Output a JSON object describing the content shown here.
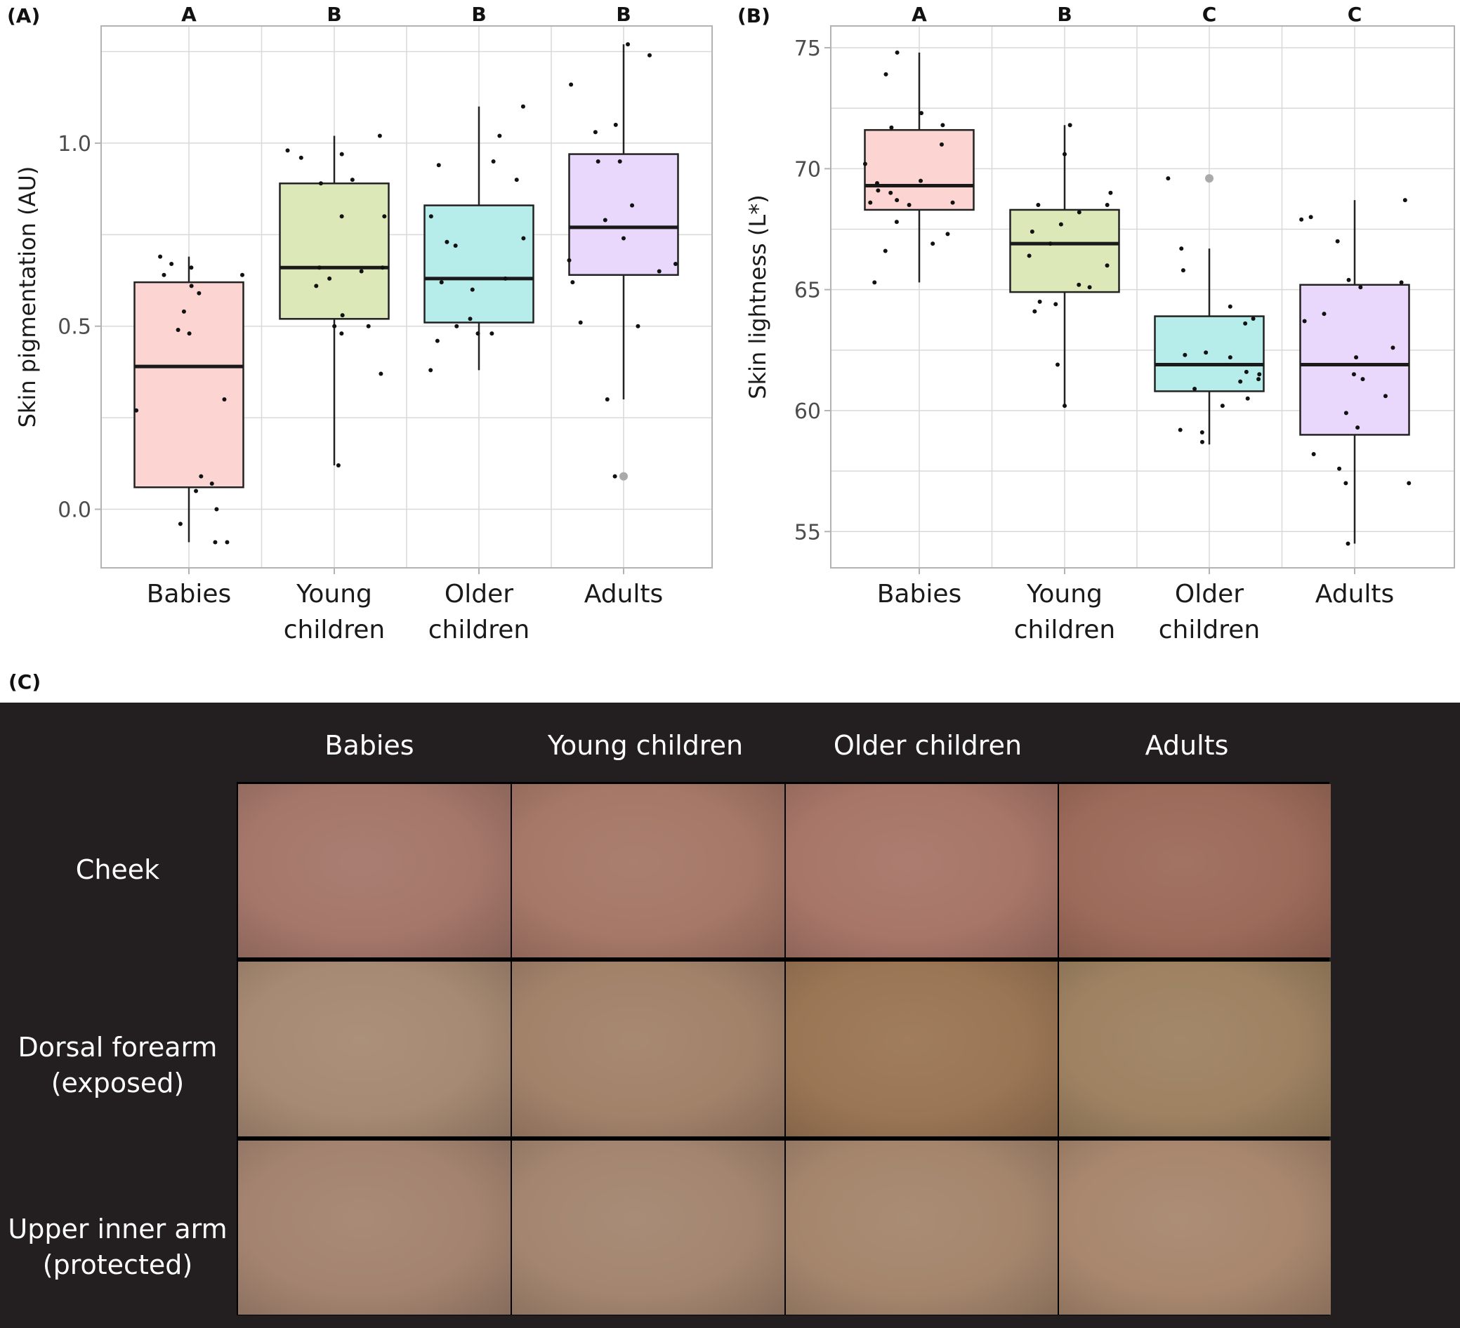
{
  "chart_data": [
    {
      "type": "box",
      "panel": "(A)",
      "ylabel": "Skin pigmentation (AU)",
      "ylim": [
        -0.16,
        1.32
      ],
      "yticks": [
        0.0,
        0.5,
        1.0
      ],
      "ytick_labels": [
        "0.0",
        "0.5",
        "1.0"
      ],
      "categories": [
        [
          "Babies"
        ],
        [
          "Young",
          "children"
        ],
        [
          "Older",
          "children"
        ],
        [
          "Adults"
        ]
      ],
      "letters": [
        "A",
        "B",
        "B",
        "B"
      ],
      "colors": [
        "#fcd5d3",
        "#dce8b8",
        "#b6ecea",
        "#ead8fc"
      ],
      "boxes": [
        {
          "q1": 0.06,
          "median": 0.39,
          "q3": 0.62,
          "whisker_low": -0.09,
          "whisker_high": 0.69,
          "outliers": []
        },
        {
          "q1": 0.52,
          "median": 0.66,
          "q3": 0.89,
          "whisker_low": 0.12,
          "whisker_high": 1.02,
          "outliers": []
        },
        {
          "q1": 0.51,
          "median": 0.63,
          "q3": 0.83,
          "whisker_low": 0.38,
          "whisker_high": 1.1,
          "outliers": []
        },
        {
          "q1": 0.64,
          "median": 0.77,
          "q3": 0.97,
          "whisker_low": 0.3,
          "whisker_high": 1.27,
          "outliers": [
            0.09
          ]
        }
      ],
      "points": [
        [
          -0.09,
          0.05,
          0.54,
          0.64,
          0.3,
          0.0,
          0.48,
          0.61,
          0.66,
          0.27,
          0.59,
          0.09,
          0.49,
          -0.09,
          0.67,
          -0.04,
          0.69,
          0.64,
          0.07
        ],
        [
          0.98,
          0.66,
          0.61,
          0.66,
          0.12,
          0.97,
          0.48,
          0.53,
          0.8,
          0.89,
          1.02,
          0.5,
          0.96,
          0.65,
          0.9,
          0.8,
          0.63,
          0.37,
          0.5
        ],
        [
          0.52,
          0.5,
          1.1,
          0.48,
          0.74,
          1.02,
          0.46,
          0.9,
          0.38,
          0.72,
          0.63,
          0.95,
          0.94,
          0.8,
          0.73,
          0.48,
          0.6,
          0.62
        ],
        [
          0.65,
          1.27,
          0.62,
          0.51,
          0.95,
          0.67,
          1.05,
          0.68,
          0.74,
          0.83,
          1.24,
          0.5,
          1.16,
          0.09,
          0.3,
          1.03,
          0.95,
          0.79
        ]
      ]
    },
    {
      "type": "box",
      "panel": "(B)",
      "ylabel": "Skin lightness (L*)",
      "ylim": [
        53.5,
        75.9
      ],
      "yticks": [
        55,
        60,
        65,
        70,
        75
      ],
      "ytick_labels": [
        "55",
        "60",
        "65",
        "70",
        "75"
      ],
      "categories": [
        [
          "Babies"
        ],
        [
          "Young",
          "children"
        ],
        [
          "Older",
          "children"
        ],
        [
          "Adults"
        ]
      ],
      "letters": [
        "A",
        "B",
        "C",
        "C"
      ],
      "colors": [
        "#fcd5d3",
        "#dce8b8",
        "#b6ecea",
        "#ead8fc"
      ],
      "boxes": [
        {
          "q1": 68.3,
          "median": 69.3,
          "q3": 71.6,
          "whisker_low": 65.3,
          "whisker_high": 74.8,
          "outliers": []
        },
        {
          "q1": 64.9,
          "median": 66.9,
          "q3": 68.3,
          "whisker_low": 60.2,
          "whisker_high": 71.8,
          "outliers": []
        },
        {
          "q1": 60.8,
          "median": 61.9,
          "q3": 63.9,
          "whisker_low": 58.6,
          "whisker_high": 66.7,
          "outliers": [
            69.6
          ]
        },
        {
          "q1": 59.0,
          "median": 61.9,
          "q3": 65.2,
          "whisker_low": 54.5,
          "whisker_high": 68.7,
          "outliers": []
        }
      ],
      "points": [
        [
          71.0,
          68.5,
          69.1,
          68.6,
          65.3,
          71.7,
          68.6,
          74.8,
          66.6,
          71.8,
          68.7,
          72.3,
          73.9,
          69.0,
          66.9,
          69.4,
          70.2,
          69.5,
          67.3,
          67.8
        ],
        [
          67.7,
          65.2,
          68.5,
          66.0,
          71.8,
          70.6,
          64.5,
          67.4,
          68.2,
          60.2,
          69.0,
          66.9,
          65.1,
          64.4,
          68.5,
          61.9,
          64.1,
          66.4
        ],
        [
          65.8,
          63.8,
          63.6,
          60.5,
          61.5,
          59.2,
          64.3,
          62.4,
          61.3,
          61.2,
          60.2,
          66.7,
          69.6,
          61.6,
          59.1,
          58.7,
          62.3,
          62.2,
          60.9
        ],
        [
          61.3,
          62.6,
          57.0,
          63.7,
          59.3,
          68.7,
          67.0,
          68.0,
          67.9,
          54.5,
          57.6,
          62.2,
          60.6,
          65.1,
          64.0,
          59.9,
          61.5,
          58.2,
          65.3,
          65.4,
          57.0
        ]
      ]
    }
  ],
  "panel_c": {
    "tag": "(C)",
    "columns": [
      "Babies",
      "Young children",
      "Older children",
      "Adults"
    ],
    "rows": [
      {
        "lines": [
          "Cheek"
        ]
      },
      {
        "lines": [
          "Dorsal forearm",
          "(exposed)"
        ]
      },
      {
        "lines": [
          "Upper inner arm",
          "(protected)"
        ]
      }
    ],
    "swatch_colors": [
      [
        "#a5776a",
        "#a67868",
        "#a77668",
        "#9d6b5a"
      ],
      [
        "#a78a73",
        "#a3826a",
        "#9b7655",
        "#9e8262"
      ],
      [
        "#a48470",
        "#a48670",
        "#a5866d",
        "#a8876e"
      ]
    ]
  }
}
